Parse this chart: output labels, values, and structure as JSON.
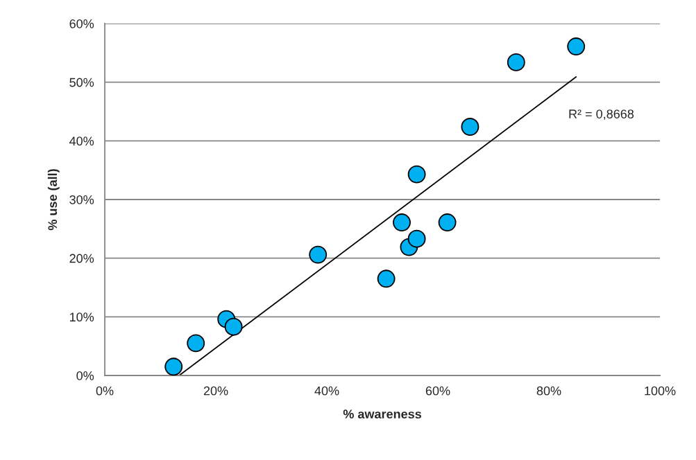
{
  "chart_data": {
    "type": "scatter",
    "xlabel": "% awareness",
    "ylabel": "% use (all)",
    "series": [
      {
        "color": "#00b0f0",
        "marker": "circle",
        "x": [
          12.4,
          16.4,
          21.9,
          23.2,
          38.4,
          50.7,
          54.8,
          56.2,
          53.5,
          61.7,
          56.2,
          65.8,
          74.1,
          84.9
        ],
        "values": [
          1.5,
          5.5,
          9.6,
          8.3,
          20.6,
          16.5,
          21.9,
          23.3,
          26.1,
          26.1,
          34.3,
          42.4,
          53.4,
          56.1
        ]
      },
      {
        "type": "line",
        "color": "#000000",
        "x": [
          13.4,
          84.9
        ],
        "values": [
          0,
          50.9
        ]
      }
    ],
    "annotations": [
      "R² = 0,8668"
    ],
    "xlim": [
      0,
      100
    ],
    "ylim": [
      0,
      60
    ],
    "xticks": [
      {
        "value": 0,
        "label": "0%"
      },
      {
        "value": 20,
        "label": "20%"
      },
      {
        "value": 40,
        "label": "40%"
      },
      {
        "value": 60,
        "label": "60%"
      },
      {
        "value": 80,
        "label": "80%"
      },
      {
        "value": 100,
        "label": "100%"
      }
    ],
    "yticks": [
      {
        "value": 0,
        "label": "0%"
      },
      {
        "value": 10,
        "label": "10%"
      },
      {
        "value": 20,
        "label": "20%"
      },
      {
        "value": 30,
        "label": "30%"
      },
      {
        "value": 40,
        "label": "40%"
      },
      {
        "value": 50,
        "label": "50%"
      },
      {
        "value": 60,
        "label": "60%"
      }
    ],
    "grid": "y",
    "legend": false
  }
}
